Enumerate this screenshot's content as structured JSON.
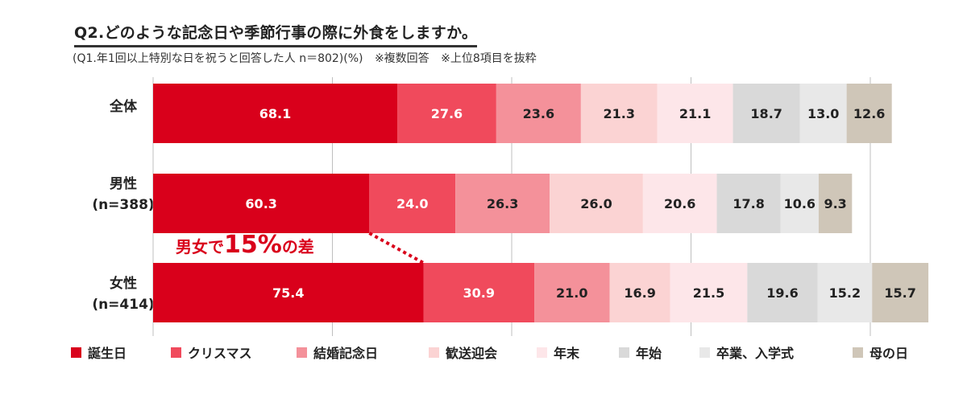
{
  "title": "Q2.どのような記念日や季節行事の際に外食をしますか。",
  "subtitle": "(Q1.年1回以上特別な日を祝うと回答した人 n＝802)(%)",
  "notes": [
    "※複数回答",
    "※上位8項目を抜粋"
  ],
  "annotation": {
    "prefix": "男女で",
    "highlight": "15%",
    "suffix": "の差"
  },
  "chart_data": {
    "type": "bar",
    "orientation": "horizontal",
    "stacked": true,
    "unit": "%",
    "categories": [
      "全体",
      "男性\n(n=388)",
      "女性\n(n=414)"
    ],
    "series": [
      {
        "name": "誕生日",
        "values": [
          68.1,
          60.3,
          75.4
        ],
        "color": "#d9001b",
        "label_color": "#ffffff"
      },
      {
        "name": "クリスマス",
        "values": [
          27.6,
          24.0,
          30.9
        ],
        "color": "#f04a5c",
        "label_color": "#ffffff"
      },
      {
        "name": "結婚記念日",
        "values": [
          23.6,
          26.3,
          21.0
        ],
        "color": "#f4919a",
        "label_color": "#222222"
      },
      {
        "name": "歓送迎会",
        "values": [
          21.3,
          26.0,
          16.9
        ],
        "color": "#fbd3d3",
        "label_color": "#222222"
      },
      {
        "name": "年末",
        "values": [
          21.1,
          20.6,
          21.5
        ],
        "color": "#fde6e9",
        "label_color": "#222222"
      },
      {
        "name": "年始",
        "values": [
          18.7,
          17.8,
          19.6
        ],
        "color": "#d9d9d9",
        "label_color": "#222222"
      },
      {
        "name": "卒業、入学式",
        "values": [
          13.0,
          10.6,
          15.2
        ],
        "color": "#e8e8e8",
        "label_color": "#222222"
      },
      {
        "name": "母の日",
        "values": [
          12.6,
          9.3,
          15.7
        ],
        "color": "#cfc6b8",
        "label_color": "#222222"
      }
    ],
    "legend": "bottom"
  }
}
